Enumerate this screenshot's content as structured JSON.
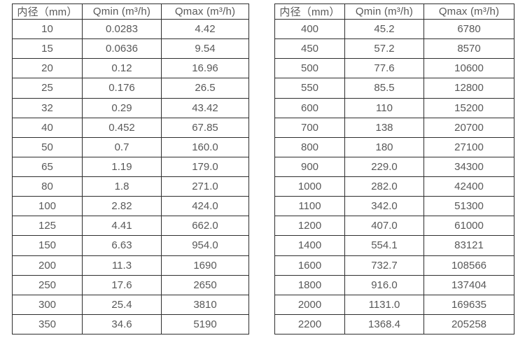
{
  "colors": {
    "background": "#ffffff",
    "border": "#2e2e2e",
    "text": "#595959"
  },
  "tables": [
    {
      "name": "flow-spec-small-diameters",
      "headers": [
        "内径（mm）",
        "Qmin (m³/h)",
        "Qmax (m³/h)"
      ],
      "rows": [
        [
          "10",
          "0.0283",
          "4.42"
        ],
        [
          "15",
          "0.0636",
          "9.54"
        ],
        [
          "20",
          "0.12",
          "16.96"
        ],
        [
          "25",
          "0.176",
          "26.5"
        ],
        [
          "32",
          "0.29",
          "43.42"
        ],
        [
          "40",
          "0.452",
          "67.85"
        ],
        [
          "50",
          "0.7",
          "160.0"
        ],
        [
          "65",
          "1.19",
          "179.0"
        ],
        [
          "80",
          "1.8",
          "271.0"
        ],
        [
          "100",
          "2.82",
          "424.0"
        ],
        [
          "125",
          "4.41",
          "662.0"
        ],
        [
          "150",
          "6.63",
          "954.0"
        ],
        [
          "200",
          "11.3",
          "1690"
        ],
        [
          "250",
          "17.6",
          "2650"
        ],
        [
          "300",
          "25.4",
          "3810"
        ],
        [
          "350",
          "34.6",
          "5190"
        ]
      ]
    },
    {
      "name": "flow-spec-large-diameters",
      "headers": [
        "内径（mm）",
        "Qmin (m³/h)",
        "Qmax (m³/h)"
      ],
      "rows": [
        [
          "400",
          "45.2",
          "6780"
        ],
        [
          "450",
          "57.2",
          "8570"
        ],
        [
          "500",
          "77.6",
          "10600"
        ],
        [
          "550",
          "85.5",
          "12800"
        ],
        [
          "600",
          "110",
          "15200"
        ],
        [
          "700",
          "138",
          "20700"
        ],
        [
          "800",
          "180",
          "27100"
        ],
        [
          "900",
          "229.0",
          "34300"
        ],
        [
          "1000",
          "282.0",
          "42400"
        ],
        [
          "1100",
          "342.0",
          "51300"
        ],
        [
          "1200",
          "407.0",
          "61000"
        ],
        [
          "1400",
          "554.1",
          "83121"
        ],
        [
          "1600",
          "732.7",
          "108566"
        ],
        [
          "1800",
          "916.0",
          "137404"
        ],
        [
          "2000",
          "1131.0",
          "169635"
        ],
        [
          "2200",
          "1368.4",
          "205258"
        ]
      ]
    }
  ]
}
